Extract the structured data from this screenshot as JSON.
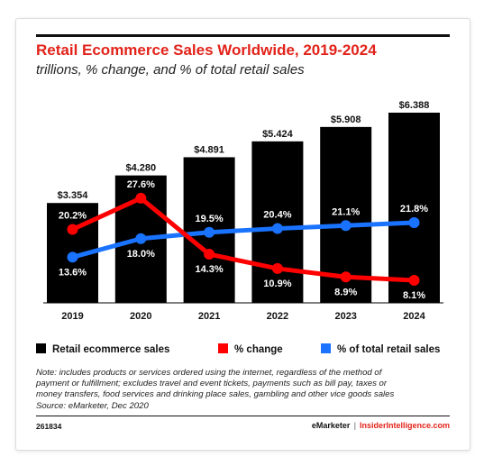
{
  "title": "Retail Ecommerce Sales Worldwide, 2019-2024",
  "subtitle": "trillions, % change, and % of total retail sales",
  "legend": {
    "sales": "Retail ecommerce sales",
    "change": "% change",
    "share": "% of total retail sales"
  },
  "note_lines": [
    "Note: includes products or services ordered using the internet, regardless of the method of",
    "payment or fulfillment; excludes travel and event tickets, payments such as bill pay, taxes or",
    "money transfers, food services and drinking place sales, gambling and other vice goods sales",
    "Source: eMarketer, Dec 2020"
  ],
  "chart_id": "261834",
  "brand": {
    "emarketer": "eMarketer",
    "sep": "|",
    "insider": "InsiderIntelligence.com"
  },
  "colors": {
    "bar": "#000000",
    "change": "#ff0000",
    "share": "#1a73ff",
    "title": "#e2231a"
  },
  "chart_data": {
    "type": "bar",
    "title": "Retail Ecommerce Sales Worldwide, 2019-2024",
    "subtitle": "trillions, % change, and % of total retail sales",
    "categories": [
      "2019",
      "2020",
      "2021",
      "2022",
      "2023",
      "2024"
    ],
    "series": [
      {
        "name": "Retail ecommerce sales",
        "type": "bar",
        "values": [
          3.354,
          4.28,
          4.891,
          5.424,
          5.908,
          6.388
        ],
        "labels": [
          "$3.354",
          "$4.280",
          "$4.891",
          "$5.424",
          "$5.908",
          "$6.388"
        ]
      },
      {
        "name": "% change",
        "type": "line",
        "values": [
          20.2,
          27.6,
          14.3,
          10.9,
          8.9,
          8.1
        ],
        "labels": [
          "20.2%",
          "27.6%",
          "14.3%",
          "10.9%",
          "8.9%",
          "8.1%"
        ]
      },
      {
        "name": "% of total retail sales",
        "type": "line",
        "values": [
          13.6,
          18.0,
          19.5,
          20.4,
          21.1,
          21.8
        ],
        "labels": [
          "13.6%",
          "18.0%",
          "19.5%",
          "20.4%",
          "21.1%",
          "21.8%"
        ]
      }
    ],
    "legend_position": "bottom",
    "grid": false
  }
}
